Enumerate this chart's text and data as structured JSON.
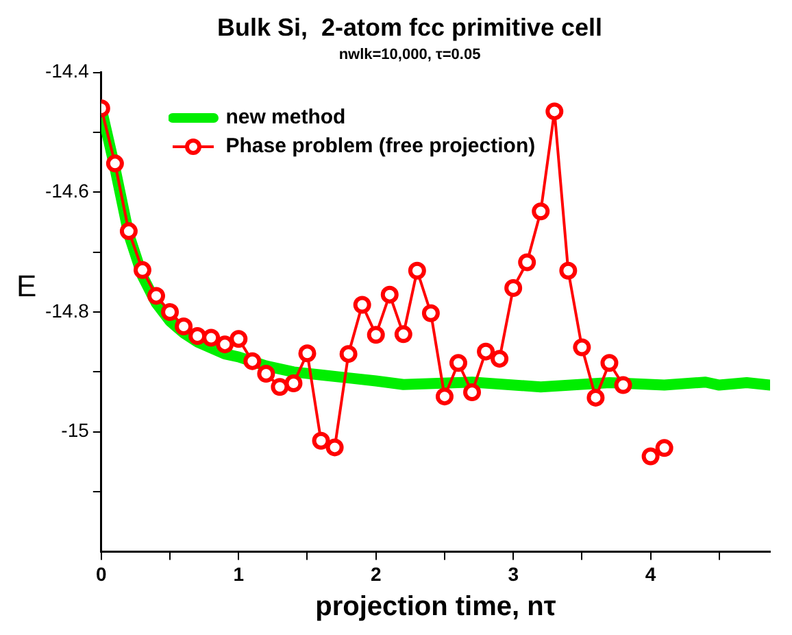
{
  "chart_data": {
    "type": "line",
    "title": "Bulk Si,  2-atom fcc primitive cell",
    "subtitle": "nwlk=10,000, τ=0.05",
    "xlabel": "projection time, nτ",
    "ylabel": "E",
    "xlim": [
      0,
      4.87
    ],
    "xticks": [
      0,
      {
        "value": 0.5,
        "label": null
      },
      1,
      {
        "value": 1.5,
        "label": null
      },
      2,
      {
        "value": 2.5,
        "label": null
      },
      3,
      {
        "value": 3.5,
        "label": null
      },
      4,
      {
        "value": 4.5,
        "label": null
      }
    ],
    "ylim": [
      -15.2,
      -14.4
    ],
    "yticks": [
      -14.4,
      {
        "value": -14.5,
        "label": null
      },
      -14.6,
      {
        "value": -14.7,
        "label": null
      },
      -14.8,
      {
        "value": -14.9,
        "label": null
      },
      {
        "value": -15,
        "label": "-15"
      },
      {
        "value": -15.1,
        "label": null
      }
    ],
    "grid": false,
    "legend": "top left",
    "series": [
      {
        "name": "new method",
        "color": "#00ee00",
        "marker": "none",
        "x": [
          0,
          0.1,
          0.2,
          0.3,
          0.4,
          0.5,
          0.6,
          0.7,
          0.8,
          0.9,
          1.0,
          1.2,
          1.4,
          1.6,
          1.8,
          2.0,
          2.2,
          2.7,
          3.2,
          3.7,
          4.1,
          4.4,
          4.5,
          4.7,
          4.87
        ],
        "values": [
          -14.46,
          -14.56,
          -14.67,
          -14.74,
          -14.785,
          -14.815,
          -14.835,
          -14.85,
          -14.86,
          -14.87,
          -14.875,
          -14.89,
          -14.9,
          -14.905,
          -14.91,
          -14.915,
          -14.921,
          -14.917,
          -14.925,
          -14.918,
          -14.922,
          -14.917,
          -14.922,
          -14.918,
          -14.922
        ]
      },
      {
        "name": "Phase problem (free projection)",
        "color": "#ff0000",
        "marker": "circle",
        "x": [
          0,
          0.1,
          0.2,
          0.3,
          0.4,
          0.5,
          0.6,
          0.7,
          0.8,
          0.9,
          1.0,
          1.1,
          1.2,
          1.3,
          1.4,
          1.5,
          1.6,
          1.7,
          1.8,
          1.9,
          2.0,
          2.1,
          2.2,
          2.3,
          2.4,
          2.5,
          2.6,
          2.7,
          2.8,
          2.9,
          3.0,
          3.1,
          3.2,
          3.3,
          3.4,
          3.5,
          3.6,
          3.7,
          3.8,
          3.9,
          4.0,
          4.1
        ],
        "values": [
          -14.46,
          -14.552,
          -14.665,
          -14.73,
          -14.773,
          -14.8,
          -14.824,
          -14.84,
          -14.843,
          -14.854,
          -14.845,
          -14.882,
          -14.903,
          -14.925,
          -14.919,
          -14.869,
          -15.015,
          -15.026,
          -14.87,
          -14.788,
          -14.838,
          -14.771,
          -14.837,
          -14.731,
          -14.802,
          -14.941,
          -14.885,
          -14.934,
          -14.866,
          -14.878,
          -14.76,
          -14.717,
          -14.632,
          -14.465,
          -14.731,
          -14.859,
          -14.943,
          -14.885,
          -14.922,
          null,
          -15.041,
          -15.027
        ]
      }
    ]
  }
}
